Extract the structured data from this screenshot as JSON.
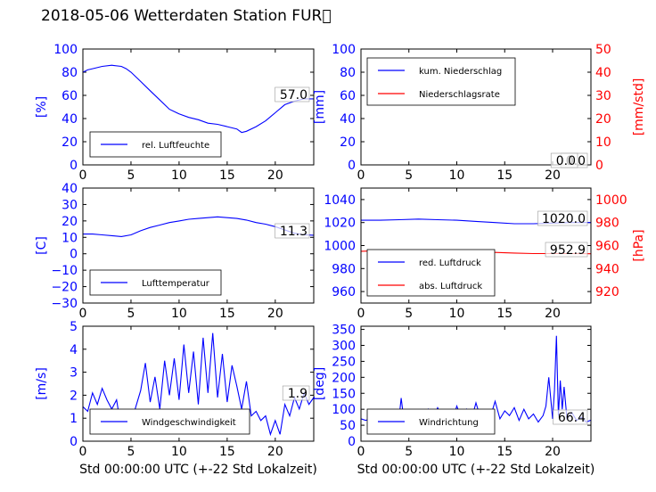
{
  "title": "2018-05-06 Wetterdaten Station FUR\u0000",
  "colors": {
    "blue": "#0000ff",
    "red": "#ff0000",
    "black": "#000000"
  },
  "chart_data": [
    {
      "type": "line",
      "ylabel": "[%]",
      "ylim": [
        0,
        100
      ],
      "yticks": [
        "0",
        "20",
        "40",
        "60",
        "80",
        "100"
      ],
      "xlim": [
        0,
        24
      ],
      "xticks": [
        "0",
        "5",
        "10",
        "15",
        "20"
      ],
      "xlabel": "",
      "legend": [
        "rel. Luftfeuchte"
      ],
      "legend_loc": "lower-left",
      "annotations": [
        "57.0"
      ],
      "series": [
        {
          "name": "rel. Luftfeuchte",
          "color": "#0000ff",
          "x": [
            0,
            0.5,
            1,
            2,
            3,
            4,
            4.5,
            5,
            6,
            7,
            8,
            9,
            10,
            11,
            12,
            13,
            14,
            15,
            16,
            16.5,
            17,
            18,
            19,
            20,
            21,
            22,
            23,
            24
          ],
          "y": [
            80,
            82,
            83,
            85,
            86,
            85,
            83,
            80,
            72,
            64,
            56,
            48,
            44,
            41,
            39,
            36,
            35,
            33,
            31,
            28,
            29,
            33,
            38,
            45,
            52,
            55,
            57,
            57
          ]
        }
      ]
    },
    {
      "type": "line",
      "ylabel": "[mm]",
      "ylabel_right": "[mm/std]",
      "ylim": [
        0,
        100
      ],
      "yticks": [
        "0",
        "20",
        "40",
        "60",
        "80",
        "100"
      ],
      "ylim_right": [
        0,
        50
      ],
      "yticks_right": [
        "0",
        "10",
        "20",
        "30",
        "40",
        "50"
      ],
      "xlim": [
        0,
        24
      ],
      "xticks": [
        "0",
        "5",
        "10",
        "15",
        "20"
      ],
      "xlabel": "",
      "legend": [
        "kum. Niederschlag",
        "Niederschlagsrate"
      ],
      "legend_loc": "upper-left",
      "annotations": [
        "0.0",
        "0.0"
      ],
      "series": [
        {
          "name": "kum. Niederschlag",
          "color": "#0000ff",
          "axis": "left",
          "x": [
            0,
            24
          ],
          "y": [
            0,
            0
          ]
        },
        {
          "name": "Niederschlagsrate",
          "color": "#ff0000",
          "axis": "right",
          "x": [
            0,
            24
          ],
          "y": [
            0,
            0
          ]
        }
      ]
    },
    {
      "type": "line",
      "ylabel": "[C]",
      "ylim": [
        -30,
        40
      ],
      "yticks": [
        "−30",
        "−20",
        "−10",
        "0",
        "10",
        "20",
        "30",
        "40"
      ],
      "xlim": [
        0,
        24
      ],
      "xticks": [
        "0",
        "5",
        "10",
        "15",
        "20"
      ],
      "xlabel": "",
      "legend": [
        "Lufttemperatur"
      ],
      "legend_loc": "lower-left",
      "annotations": [
        "11.3"
      ],
      "series": [
        {
          "name": "Lufttemperatur",
          "color": "#0000ff",
          "x": [
            0,
            1,
            2,
            3,
            4,
            5,
            6,
            7,
            8,
            9,
            10,
            11,
            12,
            13,
            14,
            15,
            16,
            17,
            18,
            19,
            20,
            21,
            22,
            23,
            24
          ],
          "y": [
            12,
            12,
            11.5,
            11,
            10.5,
            11.5,
            14,
            16,
            17.5,
            19,
            20,
            21,
            21.5,
            22,
            22.5,
            22,
            21.5,
            20.5,
            19,
            18,
            16.5,
            14.5,
            12.5,
            11.5,
            11.3
          ]
        }
      ]
    },
    {
      "type": "line",
      "ylabel": "",
      "ylabel_right": "[hPa]",
      "ylim": [
        950,
        1050
      ],
      "yticks": [
        "960",
        "980",
        "1000",
        "1020",
        "1040"
      ],
      "ylim_right": [
        910,
        1010
      ],
      "yticks_right": [
        "920",
        "940",
        "960",
        "980",
        "1000"
      ],
      "xlim": [
        0,
        24
      ],
      "xticks": [
        "0",
        "5",
        "10",
        "15",
        "20"
      ],
      "xlabel": "",
      "legend": [
        "red. Luftdruck",
        "abs. Luftdruck"
      ],
      "legend_loc": "lower-left",
      "annotations": [
        "1020.0",
        "952.9"
      ],
      "series": [
        {
          "name": "red. Luftdruck",
          "color": "#0000ff",
          "axis": "left",
          "x": [
            0,
            2,
            4,
            6,
            8,
            10,
            12,
            14,
            16,
            18,
            20,
            22,
            24
          ],
          "y": [
            1022,
            1022,
            1022.5,
            1023,
            1022.5,
            1022,
            1021,
            1020,
            1019,
            1019,
            1019.5,
            1020,
            1020
          ]
        },
        {
          "name": "abs. Luftdruck",
          "color": "#ff0000",
          "axis": "right",
          "x": [
            0,
            2,
            4,
            6,
            8,
            10,
            12,
            14,
            16,
            18,
            20,
            22,
            24
          ],
          "y": [
            955,
            955.5,
            956,
            956,
            955.5,
            955,
            954.5,
            954,
            953.5,
            953,
            953,
            953,
            952.9
          ]
        }
      ]
    },
    {
      "type": "line",
      "ylabel": "[m/s]",
      "ylim": [
        0,
        5
      ],
      "yticks": [
        "0",
        "1",
        "2",
        "3",
        "4",
        "5"
      ],
      "xlim": [
        0,
        24
      ],
      "xticks": [
        "0",
        "5",
        "10",
        "15",
        "20"
      ],
      "xlabel": "Std 00:00:00 UTC (+-22 Std Lokalzeit)",
      "legend": [
        "Windgeschwindigkeit"
      ],
      "legend_loc": "lower-left",
      "annotations": [
        "1.9"
      ],
      "series": [
        {
          "name": "Windgeschwindigkeit",
          "color": "#0000ff",
          "x": [
            0,
            0.5,
            1,
            1.5,
            2,
            2.5,
            3,
            3.5,
            4,
            4.5,
            5,
            5.5,
            6,
            6.5,
            7,
            7.5,
            8,
            8.5,
            9,
            9.5,
            10,
            10.5,
            11,
            11.5,
            12,
            12.5,
            13,
            13.5,
            14,
            14.5,
            15,
            15.5,
            16,
            16.5,
            17,
            17.5,
            18,
            18.5,
            19,
            19.5,
            20,
            20.5,
            21,
            21.5,
            22,
            22.5,
            23,
            23.5,
            24
          ],
          "y": [
            1.5,
            1.3,
            2.1,
            1.6,
            2.3,
            1.8,
            1.4,
            1.8,
            0.5,
            1.2,
            0.8,
            1.5,
            2.2,
            3.4,
            1.7,
            2.8,
            1.4,
            3.5,
            2.0,
            3.6,
            1.8,
            4.2,
            2.1,
            3.9,
            1.6,
            4.5,
            2.1,
            4.7,
            1.9,
            3.8,
            1.7,
            3.3,
            2.4,
            1.4,
            2.6,
            1.1,
            1.3,
            0.9,
            1.1,
            0.3,
            0.9,
            0.3,
            1.6,
            1.1,
            1.9,
            1.4,
            2.1,
            1.6,
            1.9
          ]
        }
      ]
    },
    {
      "type": "line",
      "ylabel": "[deg]",
      "ylim": [
        0,
        360
      ],
      "yticks": [
        "0",
        "50",
        "100",
        "150",
        "200",
        "250",
        "300",
        "350"
      ],
      "xlim": [
        0,
        24
      ],
      "xticks": [
        "0",
        "5",
        "10",
        "15",
        "20"
      ],
      "xlabel": "Std 00:00:00 UTC (+-22 Std Lokalzeit)",
      "legend": [
        "Windrichtung"
      ],
      "legend_loc": "lower-left",
      "annotations": [
        "66.4"
      ],
      "series": [
        {
          "name": "Windrichtung",
          "color": "#0000ff",
          "x": [
            0,
            0.5,
            1,
            1.5,
            2,
            2.5,
            3,
            3.5,
            4,
            4.2,
            4.5,
            5,
            5.5,
            6,
            6.5,
            7,
            7.5,
            8,
            8.5,
            9,
            9.5,
            10,
            10.5,
            11,
            11.5,
            12,
            12.5,
            13,
            13.5,
            14,
            14.5,
            15,
            15.5,
            16,
            16.5,
            17,
            17.5,
            18,
            18.5,
            19,
            19.3,
            19.6,
            20,
            20.2,
            20.4,
            20.6,
            20.8,
            21,
            21.2,
            21.5,
            22,
            22.5,
            23,
            23.5,
            24
          ],
          "y": [
            70,
            65,
            72,
            68,
            75,
            66,
            70,
            60,
            80,
            135,
            60,
            95,
            55,
            90,
            65,
            100,
            70,
            105,
            75,
            95,
            60,
            110,
            70,
            100,
            65,
            120,
            70,
            90,
            75,
            125,
            70,
            95,
            80,
            105,
            65,
            100,
            70,
            85,
            60,
            80,
            110,
            200,
            70,
            160,
            330,
            80,
            190,
            100,
            170,
            70,
            90,
            65,
            75,
            60,
            66
          ]
        }
      ]
    }
  ]
}
